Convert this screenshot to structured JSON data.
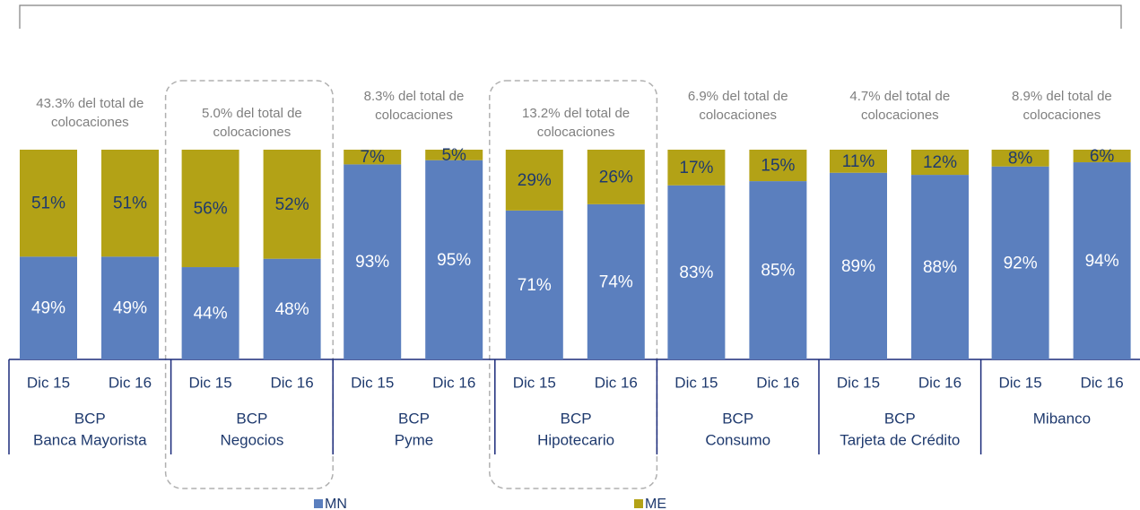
{
  "chart_data": {
    "type": "stacked_bar",
    "categories": [
      "Dic 15",
      "Dic 16",
      "Dic 15",
      "Dic 16",
      "Dic 15",
      "Dic 16",
      "Dic 15",
      "Dic 16",
      "Dic 15",
      "Dic 16",
      "Dic 15",
      "Dic 16",
      "Dic 15",
      "Dic 16"
    ],
    "groups": [
      {
        "name": [
          "BCP",
          "Banca Mayorista"
        ],
        "annotation": [
          "43.3% del total de",
          "colocaciones"
        ],
        "highlighted": false
      },
      {
        "name": [
          "BCP",
          "Negocios"
        ],
        "annotation": [
          "5.0% del total de",
          "colocaciones"
        ],
        "highlighted": true
      },
      {
        "name": [
          "BCP",
          "Pyme"
        ],
        "annotation": [
          "8.3% del total de",
          "colocaciones"
        ],
        "highlighted": false
      },
      {
        "name": [
          "BCP",
          "Hipotecario"
        ],
        "annotation": [
          "13.2% del total de",
          "colocaciones"
        ],
        "highlighted": true
      },
      {
        "name": [
          "BCP",
          "Consumo"
        ],
        "annotation": [
          "6.9% del total de",
          "colocaciones"
        ],
        "highlighted": false
      },
      {
        "name": [
          "BCP",
          "Tarjeta de Crédito"
        ],
        "annotation": [
          "4.7% del total de",
          "colocaciones"
        ],
        "highlighted": false
      },
      {
        "name": [
          "Mibanco"
        ],
        "annotation": [
          "8.9% del total de",
          "colocaciones"
        ],
        "highlighted": false
      }
    ],
    "series": [
      {
        "name": "MN",
        "color": "#5b7fbe",
        "values": [
          49,
          49,
          44,
          48,
          93,
          95,
          71,
          74,
          83,
          85,
          89,
          88,
          92,
          94
        ],
        "value_labels": [
          "49%",
          "49%",
          "44%",
          "48%",
          "93%",
          "95%",
          "71%",
          "74%",
          "83%",
          "85%",
          "89%",
          "88%",
          "92%",
          "94%"
        ]
      },
      {
        "name": "ME",
        "color": "#b3a216",
        "values": [
          51,
          51,
          56,
          52,
          7,
          5,
          29,
          26,
          17,
          15,
          11,
          12,
          8,
          6
        ],
        "value_labels": [
          "51%",
          "51%",
          "56%",
          "52%",
          "7%",
          "5%",
          "29%",
          "26%",
          "17%",
          "15%",
          "11%",
          "12%",
          "8%",
          "6%"
        ]
      }
    ],
    "ylim": [
      0,
      100
    ]
  }
}
